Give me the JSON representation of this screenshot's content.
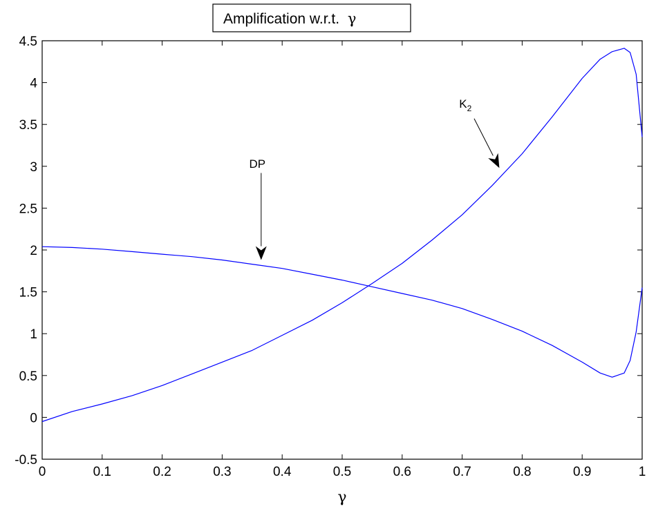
{
  "chart_data": {
    "type": "line",
    "title": "Amplification w.r.t. γ",
    "title_parts": {
      "text": "Amplification w.r.t.",
      "symbol": "γ"
    },
    "xlabel": "γ",
    "ylabel": "",
    "xlim": [
      0,
      1
    ],
    "ylim": [
      -0.5,
      4.5
    ],
    "grid": false,
    "x_ticks": [
      "0",
      "0.1",
      "0.2",
      "0.3",
      "0.4",
      "0.5",
      "0.6",
      "0.7",
      "0.8",
      "0.9",
      "1"
    ],
    "y_ticks": [
      "-0.5",
      "0",
      "0.5",
      "1",
      "1.5",
      "2",
      "2.5",
      "3",
      "3.5",
      "4",
      "4.5"
    ],
    "x_tick_values": [
      0,
      0.1,
      0.2,
      0.3,
      0.4,
      0.5,
      0.6,
      0.7,
      0.8,
      0.9,
      1
    ],
    "y_tick_values": [
      -0.5,
      0,
      0.5,
      1,
      1.5,
      2,
      2.5,
      3,
      3.5,
      4,
      4.5
    ],
    "line_color": "#0000ff",
    "series": [
      {
        "x": [
          0,
          0.05,
          0.1,
          0.15,
          0.2,
          0.25,
          0.3,
          0.35,
          0.4,
          0.45,
          0.5,
          0.55,
          0.6,
          0.65,
          0.7,
          0.75,
          0.8,
          0.85,
          0.9,
          0.93,
          0.95,
          0.97,
          0.98,
          0.99,
          1.0
        ],
        "y": [
          -0.05,
          0.07,
          0.16,
          0.26,
          0.38,
          0.52,
          0.66,
          0.8,
          0.98,
          1.16,
          1.37,
          1.6,
          1.84,
          2.12,
          2.42,
          2.77,
          3.15,
          3.59,
          4.05,
          4.28,
          4.37,
          4.41,
          4.36,
          4.1,
          3.35
        ]
      },
      {
        "x": [
          0,
          0.05,
          0.1,
          0.15,
          0.2,
          0.25,
          0.3,
          0.35,
          0.4,
          0.45,
          0.5,
          0.55,
          0.6,
          0.65,
          0.7,
          0.75,
          0.8,
          0.85,
          0.9,
          0.93,
          0.95,
          0.97,
          0.98,
          0.99,
          1.0
        ],
        "y": [
          2.04,
          2.03,
          2.01,
          1.98,
          1.95,
          1.92,
          1.88,
          1.83,
          1.78,
          1.71,
          1.64,
          1.56,
          1.48,
          1.4,
          1.3,
          1.17,
          1.03,
          0.86,
          0.66,
          0.53,
          0.48,
          0.53,
          0.68,
          1.02,
          1.55
        ]
      }
    ],
    "annotations": [
      {
        "text": "K",
        "subscript": "2",
        "text_x": 0.695,
        "text_y": 3.7,
        "from": [
          0.72,
          3.57
        ],
        "to": [
          0.762,
          2.98
        ]
      },
      {
        "text": "DP",
        "subscript": "",
        "text_x": 0.345,
        "text_y": 2.98,
        "from": [
          0.365,
          2.92
        ],
        "to": [
          0.365,
          1.88
        ]
      }
    ]
  }
}
